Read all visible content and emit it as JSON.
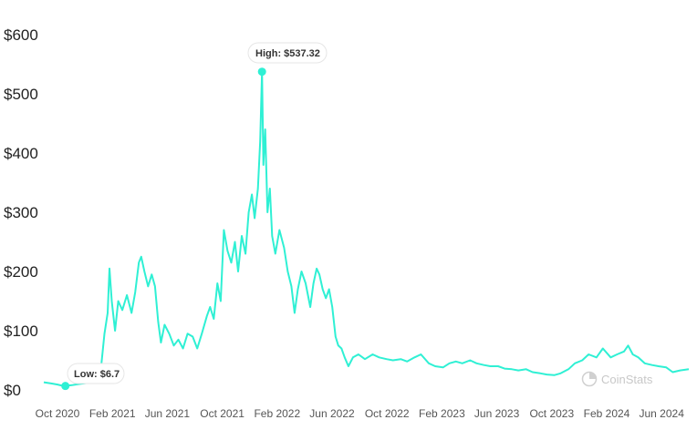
{
  "chart_data": {
    "type": "line",
    "y_ticks": [
      "$600",
      "$500",
      "$400",
      "$300",
      "$200",
      "$100",
      "$0"
    ],
    "ylim": [
      0,
      600
    ],
    "x_ticks": [
      "Oct 2020",
      "Feb 2021",
      "Jun 2021",
      "Oct 2021",
      "Feb 2022",
      "Jun 2022",
      "Oct 2022",
      "Feb 2023",
      "Jun 2023",
      "Oct 2023",
      "Feb 2024",
      "Jun 2024"
    ],
    "xlim": [
      "2020-09-15",
      "2024-07-20"
    ],
    "series": [
      {
        "color": "#2ff0d4",
        "points": [
          [
            "2020-09-15",
            13
          ],
          [
            "2020-10-01",
            11
          ],
          [
            "2020-10-15",
            9
          ],
          [
            "2020-10-25",
            7
          ],
          [
            "2020-11-01",
            6.7
          ],
          [
            "2020-11-15",
            8
          ],
          [
            "2020-12-01",
            10
          ],
          [
            "2020-12-20",
            12
          ],
          [
            "2021-01-05",
            15
          ],
          [
            "2021-01-18",
            40
          ],
          [
            "2021-01-25",
            95
          ],
          [
            "2021-02-01",
            130
          ],
          [
            "2021-02-05",
            205
          ],
          [
            "2021-02-10",
            150
          ],
          [
            "2021-02-17",
            100
          ],
          [
            "2021-02-24",
            150
          ],
          [
            "2021-03-05",
            135
          ],
          [
            "2021-03-15",
            160
          ],
          [
            "2021-03-25",
            130
          ],
          [
            "2021-04-02",
            165
          ],
          [
            "2021-04-10",
            215
          ],
          [
            "2021-04-15",
            225
          ],
          [
            "2021-04-22",
            200
          ],
          [
            "2021-04-30",
            175
          ],
          [
            "2021-05-08",
            195
          ],
          [
            "2021-05-15",
            175
          ],
          [
            "2021-05-22",
            115
          ],
          [
            "2021-05-28",
            80
          ],
          [
            "2021-06-05",
            110
          ],
          [
            "2021-06-15",
            95
          ],
          [
            "2021-06-25",
            75
          ],
          [
            "2021-07-05",
            85
          ],
          [
            "2021-07-15",
            70
          ],
          [
            "2021-07-25",
            95
          ],
          [
            "2021-08-05",
            90
          ],
          [
            "2021-08-15",
            70
          ],
          [
            "2021-08-25",
            95
          ],
          [
            "2021-09-05",
            125
          ],
          [
            "2021-09-12",
            140
          ],
          [
            "2021-09-20",
            120
          ],
          [
            "2021-09-28",
            180
          ],
          [
            "2021-10-05",
            150
          ],
          [
            "2021-10-12",
            270
          ],
          [
            "2021-10-20",
            235
          ],
          [
            "2021-10-28",
            215
          ],
          [
            "2021-11-05",
            250
          ],
          [
            "2021-11-12",
            200
          ],
          [
            "2021-11-20",
            260
          ],
          [
            "2021-11-28",
            230
          ],
          [
            "2021-12-05",
            300
          ],
          [
            "2021-12-12",
            330
          ],
          [
            "2021-12-18",
            290
          ],
          [
            "2021-12-25",
            340
          ],
          [
            "2021-12-30",
            420
          ],
          [
            "2022-01-03",
            537.32
          ],
          [
            "2022-01-06",
            380
          ],
          [
            "2022-01-10",
            440
          ],
          [
            "2022-01-15",
            300
          ],
          [
            "2022-01-20",
            340
          ],
          [
            "2022-01-25",
            260
          ],
          [
            "2022-02-01",
            230
          ],
          [
            "2022-02-10",
            270
          ],
          [
            "2022-02-20",
            240
          ],
          [
            "2022-02-28",
            200
          ],
          [
            "2022-03-08",
            175
          ],
          [
            "2022-03-15",
            130
          ],
          [
            "2022-03-22",
            170
          ],
          [
            "2022-03-30",
            200
          ],
          [
            "2022-04-08",
            180
          ],
          [
            "2022-04-18",
            140
          ],
          [
            "2022-04-25",
            180
          ],
          [
            "2022-05-02",
            205
          ],
          [
            "2022-05-08",
            195
          ],
          [
            "2022-05-15",
            170
          ],
          [
            "2022-05-22",
            155
          ],
          [
            "2022-05-29",
            170
          ],
          [
            "2022-06-05",
            140
          ],
          [
            "2022-06-12",
            90
          ],
          [
            "2022-06-18",
            75
          ],
          [
            "2022-06-25",
            70
          ],
          [
            "2022-07-02",
            55
          ],
          [
            "2022-07-10",
            40
          ],
          [
            "2022-07-20",
            55
          ],
          [
            "2022-08-01",
            60
          ],
          [
            "2022-08-15",
            52
          ],
          [
            "2022-09-01",
            60
          ],
          [
            "2022-09-15",
            55
          ],
          [
            "2022-10-01",
            52
          ],
          [
            "2022-10-15",
            50
          ],
          [
            "2022-11-01",
            52
          ],
          [
            "2022-11-15",
            48
          ],
          [
            "2022-12-01",
            55
          ],
          [
            "2022-12-15",
            60
          ],
          [
            "2023-01-01",
            45
          ],
          [
            "2023-01-15",
            40
          ],
          [
            "2023-02-01",
            38
          ],
          [
            "2023-02-15",
            45
          ],
          [
            "2023-03-01",
            48
          ],
          [
            "2023-03-15",
            45
          ],
          [
            "2023-04-01",
            50
          ],
          [
            "2023-04-15",
            45
          ],
          [
            "2023-05-01",
            42
          ],
          [
            "2023-05-15",
            40
          ],
          [
            "2023-06-01",
            40
          ],
          [
            "2023-06-15",
            36
          ],
          [
            "2023-07-01",
            35
          ],
          [
            "2023-07-15",
            33
          ],
          [
            "2023-08-01",
            35
          ],
          [
            "2023-08-15",
            30
          ],
          [
            "2023-09-01",
            28
          ],
          [
            "2023-09-15",
            26
          ],
          [
            "2023-10-01",
            25
          ],
          [
            "2023-10-15",
            28
          ],
          [
            "2023-11-01",
            35
          ],
          [
            "2023-11-15",
            45
          ],
          [
            "2023-12-01",
            50
          ],
          [
            "2023-12-15",
            60
          ],
          [
            "2024-01-01",
            55
          ],
          [
            "2024-01-15",
            70
          ],
          [
            "2024-02-01",
            55
          ],
          [
            "2024-02-15",
            60
          ],
          [
            "2024-03-01",
            65
          ],
          [
            "2024-03-10",
            75
          ],
          [
            "2024-03-20",
            60
          ],
          [
            "2024-04-01",
            55
          ],
          [
            "2024-04-15",
            45
          ],
          [
            "2024-05-01",
            42
          ],
          [
            "2024-05-15",
            40
          ],
          [
            "2024-06-01",
            38
          ],
          [
            "2024-06-15",
            30
          ],
          [
            "2024-07-01",
            33
          ],
          [
            "2024-07-20",
            35
          ]
        ]
      }
    ],
    "annotations": {
      "high": {
        "label": "High: $537.32",
        "date": "2022-01-03",
        "value": 537.32
      },
      "low": {
        "label": "Low: $6.7",
        "date": "2020-11-01",
        "value": 6.7
      }
    },
    "grid": false
  },
  "watermark": {
    "text": "CoinStats",
    "icon": "coinstats-logo-icon"
  }
}
